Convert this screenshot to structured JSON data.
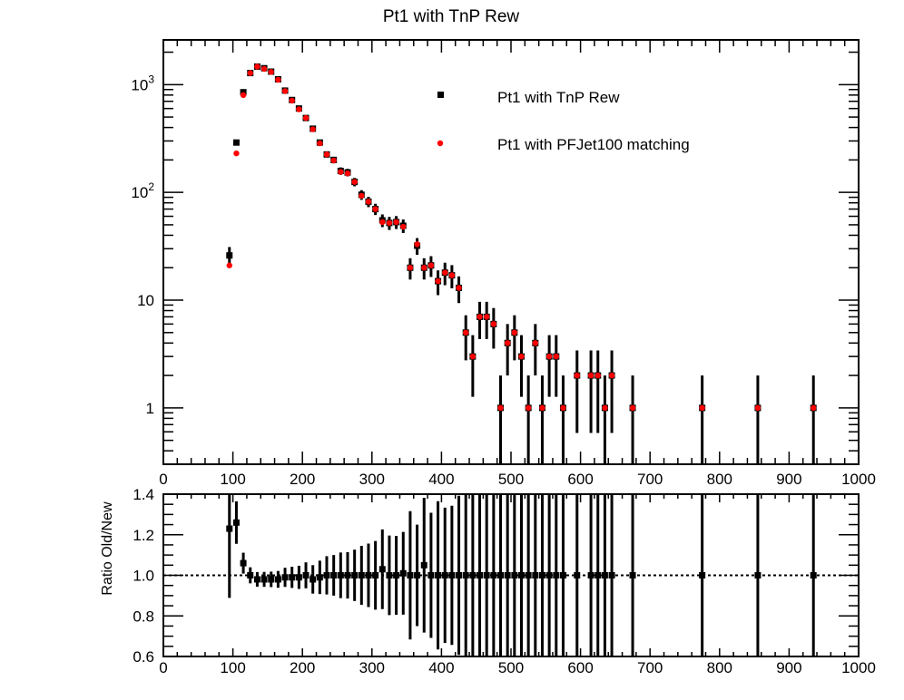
{
  "figure_title": "Pt1 with TnP Rew",
  "chart_data": [
    {
      "type": "scatter",
      "title": "Pt1 with TnP Rew",
      "xlabel": "",
      "ylabel": "",
      "xlim": [
        0,
        1000
      ],
      "ylim": [
        0.3,
        2600
      ],
      "yscale": "log",
      "grid": false,
      "legend_position": "top-right",
      "x_tick_labels": [
        "0",
        "100",
        "200",
        "300",
        "400",
        "500",
        "600",
        "700",
        "800",
        "900",
        "1000"
      ],
      "y_tick_labels": [
        {
          "value": 1,
          "base": "1",
          "exp": ""
        },
        {
          "value": 10,
          "base": "10",
          "exp": ""
        },
        {
          "value": 100,
          "base": "10",
          "exp": "2"
        },
        {
          "value": 1000,
          "base": "10",
          "exp": "3"
        }
      ],
      "series": [
        {
          "name": "Pt1 with TnP Rew",
          "color": "#000000",
          "marker": "square",
          "x": [
            95,
            105,
            115,
            125,
            135,
            145,
            155,
            165,
            175,
            185,
            195,
            205,
            215,
            225,
            235,
            245,
            255,
            265,
            275,
            285,
            295,
            305,
            315,
            325,
            335,
            345,
            355,
            365,
            375,
            385,
            395,
            405,
            415,
            425,
            435,
            445,
            455,
            465,
            475,
            485,
            495,
            505,
            515,
            525,
            535,
            545,
            555,
            565,
            575,
            595,
            615,
            625,
            635,
            645,
            675,
            775,
            855,
            935
          ],
          "y": [
            26,
            290,
            850,
            1280,
            1470,
            1420,
            1320,
            1120,
            880,
            720,
            600,
            490,
            390,
            290,
            225,
            200,
            158,
            153,
            125,
            95,
            82,
            70,
            55,
            52,
            53,
            49,
            20,
            32,
            20,
            21,
            15,
            18,
            17,
            13,
            5,
            3,
            7,
            7,
            6,
            1,
            4,
            5,
            3,
            1,
            4,
            1,
            3,
            3,
            1,
            2,
            2,
            2,
            1,
            2,
            1,
            1,
            1,
            1
          ]
        },
        {
          "name": "Pt1 with PFJet100 matching",
          "color": "#ff0000",
          "marker": "circle",
          "x": [
            95,
            105,
            115,
            125,
            135,
            145,
            155,
            165,
            175,
            185,
            195,
            205,
            215,
            225,
            235,
            245,
            255,
            265,
            275,
            285,
            295,
            305,
            315,
            325,
            335,
            345,
            355,
            365,
            375,
            385,
            395,
            405,
            415,
            425,
            435,
            445,
            455,
            465,
            475,
            485,
            495,
            505,
            515,
            525,
            535,
            545,
            555,
            565,
            575,
            595,
            615,
            625,
            635,
            645,
            675,
            775,
            855,
            935
          ],
          "y": [
            21,
            230,
            800,
            1280,
            1470,
            1400,
            1310,
            1110,
            870,
            710,
            590,
            490,
            385,
            285,
            225,
            198,
            155,
            150,
            125,
            93,
            82,
            70,
            53,
            52,
            53,
            48,
            20,
            33,
            20,
            21,
            15,
            18,
            17,
            13,
            5,
            3,
            7,
            7,
            6,
            1,
            4,
            5,
            3,
            1,
            4,
            1,
            3,
            3,
            1,
            2,
            2,
            2,
            1,
            2,
            1,
            1,
            1,
            1
          ]
        }
      ]
    },
    {
      "type": "scatter",
      "title": "",
      "xlabel": "",
      "ylabel": "Ratio Old/New",
      "xlim": [
        0,
        1000
      ],
      "ylim": [
        0.6,
        1.4
      ],
      "yscale": "linear",
      "grid": false,
      "reference_line": 1.0,
      "x_tick_labels": [
        "0",
        "100",
        "200",
        "300",
        "400",
        "500",
        "600",
        "700",
        "800",
        "900",
        "1000"
      ],
      "y_tick_labels": [
        "0.6",
        "0.8",
        "1.0",
        "1.2",
        "1.4"
      ],
      "series": [
        {
          "color": "#000000",
          "marker": "square",
          "x": [
            95,
            105,
            115,
            125,
            135,
            145,
            155,
            165,
            175,
            185,
            195,
            205,
            215,
            225,
            235,
            245,
            255,
            265,
            275,
            285,
            295,
            305,
            315,
            325,
            335,
            345,
            355,
            365,
            375,
            385,
            395,
            405,
            415,
            425,
            435,
            445,
            455,
            465,
            475,
            485,
            495,
            505,
            515,
            525,
            535,
            545,
            555,
            565,
            575,
            595,
            615,
            625,
            635,
            645,
            675,
            775,
            855,
            935
          ],
          "y": [
            1.23,
            1.26,
            1.06,
            1.0,
            0.98,
            0.98,
            0.98,
            0.98,
            0.99,
            0.99,
            0.99,
            1.0,
            0.98,
            0.99,
            1.0,
            1.0,
            1.0,
            1.0,
            1.0,
            1.0,
            1.0,
            1.0,
            1.03,
            1.0,
            1.0,
            1.01,
            1.0,
            1.0,
            1.05,
            1.0,
            1.0,
            1.0,
            1.0,
            1.0,
            1.0,
            1.0,
            1.0,
            1.0,
            1.0,
            1.0,
            1.0,
            1.0,
            1.0,
            1.0,
            1.0,
            1.0,
            1.0,
            1.0,
            1.0,
            1.0,
            1.0,
            1.0,
            1.0,
            1.0,
            1.0,
            1.0,
            1.0,
            1.0
          ]
        }
      ]
    }
  ]
}
